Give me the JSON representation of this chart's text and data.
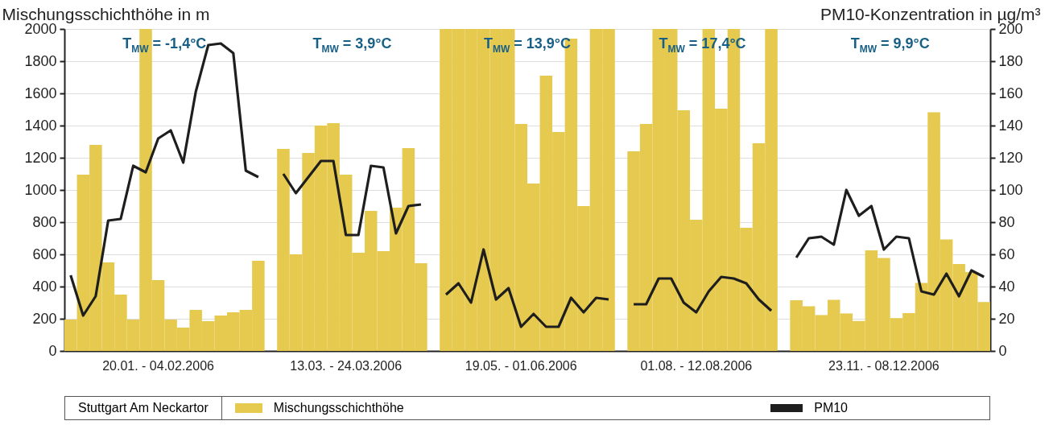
{
  "chart_data": {
    "type": "bar",
    "ylabel": "Mischungsschichthöhe in m",
    "y2label": "PM10-Konzentration in µg/m³",
    "categories": [
      null,
      null,
      null,
      null,
      null,
      null,
      null,
      "20.01. - 04.02.2006",
      null,
      null,
      null,
      null,
      null,
      null,
      null,
      null,
      null,
      null,
      null,
      null,
      null,
      null,
      "13.03. - 24.03.2006",
      null,
      null,
      null,
      null,
      null,
      null,
      null,
      null,
      null,
      null,
      null,
      null,
      null,
      "19.05. - 01.06.2006",
      null,
      null,
      null,
      null,
      null,
      null,
      null,
      null,
      null,
      null,
      null,
      null,
      null,
      "01.08. - 12.08.2006",
      null,
      null,
      null,
      null,
      null,
      null,
      null,
      null,
      null,
      null,
      null,
      null,
      null,
      null,
      "23.11. - 08.12.2006",
      null,
      null,
      null,
      null,
      null,
      null,
      null,
      null
    ],
    "ylim": [
      0,
      2000
    ],
    "yticks": [
      0,
      200,
      400,
      600,
      800,
      1000,
      1200,
      1400,
      1600,
      1800,
      2000
    ],
    "y2lim": [
      0,
      200
    ],
    "y2ticks": [
      0,
      20,
      40,
      60,
      80,
      100,
      120,
      140,
      160,
      180,
      200
    ],
    "grid": "y",
    "legend": "bottom",
    "annotations": [
      "T$_{MW}$ = -1,4°C",
      "T$_{MW}$ = 3,9°C",
      "T$_{MW}$ = 13,9°C",
      "T$_{MW}$ = 17,4°C",
      "T$_{MW}$ = 9,9°C",
      "Stuttgart Am Neckartor"
    ],
    "series": [
      {
        "name": "Mischungsschichthöhe",
        "color": "#e6ca50",
        "values": [
          195,
          1095,
          1280,
          550,
          350,
          195,
          2000,
          440,
          195,
          145,
          255,
          185,
          220,
          240,
          255,
          560,
          null,
          1255,
          600,
          1230,
          1400,
          1415,
          1095,
          610,
          870,
          620,
          890,
          1260,
          545,
          null,
          2000,
          2000,
          2000,
          2000,
          2000,
          2000,
          1410,
          1040,
          1710,
          1360,
          1940,
          900,
          2000,
          2000,
          null,
          1240,
          1410,
          2000,
          2000,
          1495,
          815,
          2000,
          1505,
          2000,
          765,
          1290,
          2000,
          null,
          315,
          278,
          223,
          318,
          233,
          186,
          625,
          578,
          204,
          235,
          423,
          1483,
          693,
          540,
          490,
          304
        ]
      },
      {
        "name": "PM10",
        "type": "line",
        "axis": "y2",
        "color": "#1e1e1e",
        "values": [
          47,
          22,
          34,
          81,
          82,
          115,
          111,
          132,
          137,
          117,
          161,
          190,
          191,
          185,
          112,
          108,
          null,
          110,
          98,
          108,
          118,
          118,
          72,
          72,
          115,
          114,
          73,
          90,
          91,
          null,
          35,
          42,
          30,
          63,
          32,
          39,
          15,
          23,
          15,
          15,
          33,
          24,
          33,
          32,
          null,
          29,
          29,
          45,
          45,
          30,
          24,
          37,
          46,
          45,
          42,
          32,
          25,
          null,
          58,
          70,
          71,
          66,
          100,
          84,
          90,
          63,
          71,
          70,
          37,
          35,
          48,
          34,
          50,
          46
        ]
      }
    ]
  }
}
